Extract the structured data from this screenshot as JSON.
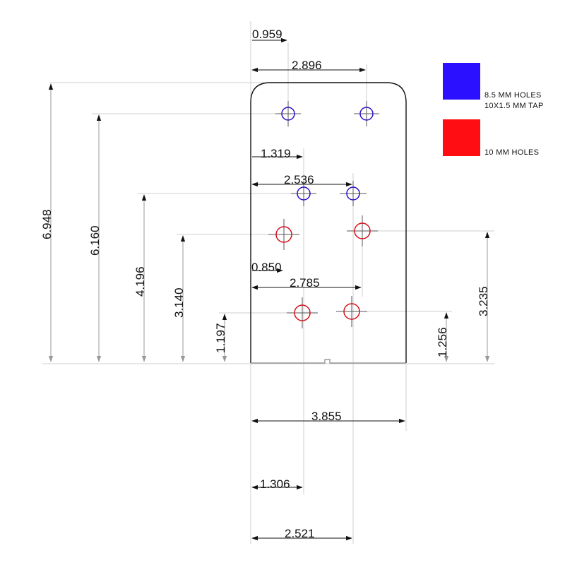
{
  "plate": {
    "width": "3.855",
    "height": "6.948"
  },
  "legend": [
    {
      "color": "#2a10ff",
      "line1": "8.5 MM HOLES",
      "line2": "10X1.5 MM TAP"
    },
    {
      "color": "#ff0d12",
      "line1": "10 MM HOLES",
      "line2": ""
    }
  ],
  "horizontal_dims": {
    "d0959": "0.959",
    "d2896": "2.896",
    "d1319": "1.319",
    "d2536": "2.536",
    "d0850": "0.850",
    "d2785": "2.785",
    "d3855": "3.855",
    "d1306": "1.306",
    "d2521": "2.521"
  },
  "vertical_dims": {
    "d6948": "6.948",
    "d6160": "6.160",
    "d4196": "4.196",
    "d3140": "3.140",
    "d1197": "1.197",
    "d1256": "1.256",
    "d3235": "3.235"
  },
  "hole_colors": {
    "blue": "#2a10c8",
    "red": "#d4101a"
  }
}
